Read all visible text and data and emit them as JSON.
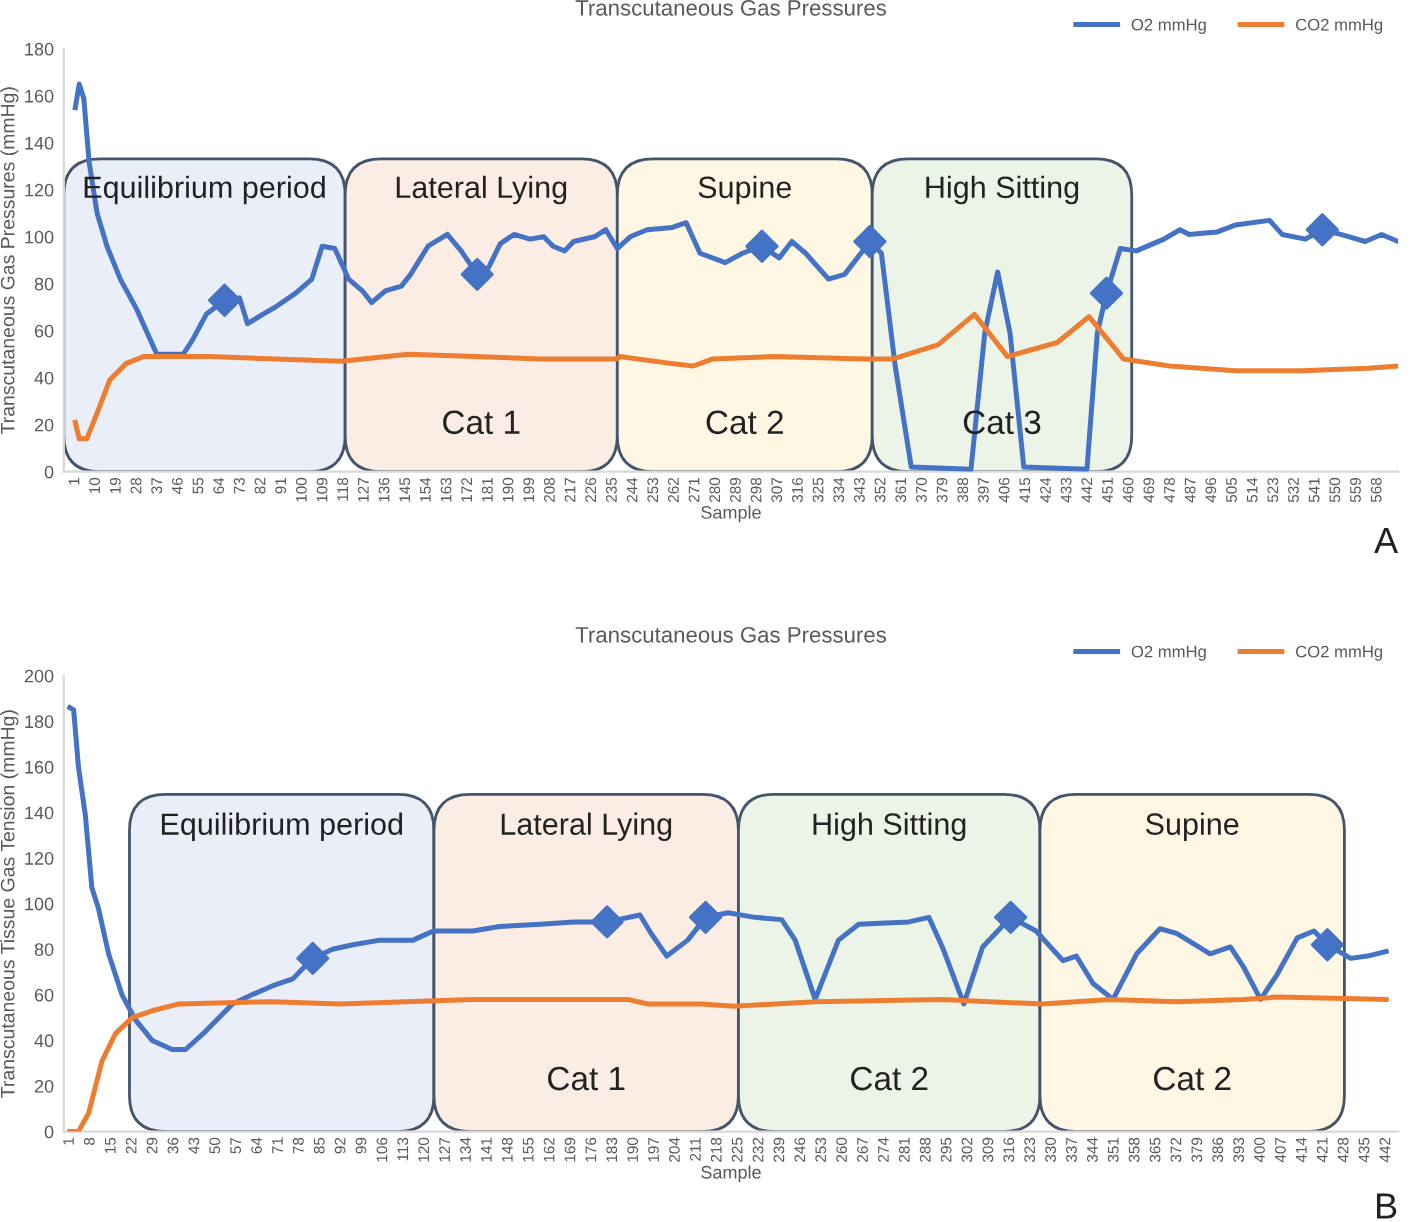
{
  "chart_data": [
    {
      "type": "line",
      "title": "Transcutaneous Gas Pressures",
      "xlabel": "Sample",
      "ylabel": "Transcutaneous Gas Pressures (mmHg)",
      "xlim": [
        -4,
        577
      ],
      "ylim": [
        0,
        180
      ],
      "yticks": [
        0,
        20,
        40,
        60,
        80,
        100,
        120,
        140,
        160,
        180
      ],
      "xticks": [
        1,
        10,
        19,
        28,
        37,
        46,
        55,
        64,
        73,
        82,
        91,
        100,
        109,
        118,
        127,
        136,
        145,
        154,
        163,
        172,
        181,
        190,
        199,
        208,
        217,
        226,
        235,
        244,
        253,
        262,
        271,
        280,
        289,
        298,
        307,
        316,
        325,
        334,
        343,
        352,
        361,
        370,
        379,
        388,
        397,
        406,
        415,
        424,
        433,
        442,
        451,
        460,
        469,
        478,
        487,
        496,
        505,
        514,
        523,
        532,
        541,
        550,
        559,
        568
      ],
      "grid": false,
      "legend": "top right",
      "series": [
        {
          "name": "O2 mmHg",
          "color": "#4472c4",
          "x": [
            1,
            2.7,
            4.7,
            7,
            10.5,
            14.8,
            20.6,
            27.8,
            36.5,
            48,
            52,
            58,
            66,
            72.5,
            76,
            82.6,
            88,
            97,
            104,
            108.5,
            114,
            120,
            126,
            130,
            136,
            143,
            147,
            154.6,
            163,
            169,
            176,
            181,
            186,
            192,
            199,
            205,
            209,
            214,
            218,
            227,
            232,
            237,
            242.6,
            250,
            261,
            267,
            273,
            284,
            291.5,
            300,
            307.5,
            313,
            319,
            329,
            336,
            347,
            352,
            358,
            365,
            391,
            397,
            402.6,
            408,
            414,
            441.5,
            446,
            450,
            456,
            463,
            475,
            482,
            486,
            498,
            506,
            521,
            526.5,
            536.6,
            543.8,
            552,
            562.6,
            569.8,
            577
          ],
          "values": [
            155,
            165,
            159,
            132,
            110,
            96,
            82,
            69,
            50,
            50,
            56,
            67,
            73,
            74,
            63,
            67,
            70,
            76,
            82,
            96,
            95,
            82,
            77,
            72,
            77,
            79,
            84,
            96,
            101,
            94,
            84,
            87,
            97,
            101,
            99,
            100,
            96,
            94,
            98,
            100,
            103,
            95,
            100,
            103,
            104,
            106,
            93,
            89,
            93,
            96,
            91,
            98,
            93,
            82,
            84,
            98,
            93,
            45,
            2,
            1,
            59,
            85,
            59,
            2,
            1,
            59,
            76,
            95,
            94,
            99,
            103,
            101,
            102,
            105,
            107,
            101,
            99,
            103,
            101,
            98,
            101,
            98
          ]
        },
        {
          "name": "CO2 mmHg",
          "color": "#ed7d31",
          "x": [
            1,
            2.7,
            6,
            10.5,
            16,
            23,
            30.7,
            59.5,
            88,
            117,
            146,
            175,
            203.7,
            237,
            238,
            261,
            270,
            278.6,
            305,
            345,
            357,
            376.6,
            392.5,
            406.9,
            428.6,
            442.4,
            457.4,
            477.5,
            506,
            535,
            564,
            577
          ],
          "values": [
            21,
            14,
            14,
            25,
            39,
            46,
            49,
            49,
            48,
            47,
            50,
            49,
            48,
            48,
            49,
            46,
            45,
            48,
            49,
            48,
            48,
            54,
            67,
            49,
            55,
            66,
            48,
            45,
            43,
            43,
            44,
            45
          ]
        },
        {
          "type": "scatter",
          "marker": "diamond",
          "color": "#4472c4",
          "x": [
            66,
            176,
            300,
            347,
            450,
            544
          ],
          "values": [
            73,
            84,
            96,
            98,
            76,
            103
          ]
        }
      ],
      "bands": [
        {
          "axis": "x",
          "from": -4,
          "to": 118.5,
          "label": "Equilibrium period",
          "color": "#e9eef8"
        },
        {
          "axis": "x",
          "from": 118.5,
          "to": 237,
          "label": "Lateral Lying",
          "color": "#fbede4"
        },
        {
          "axis": "x",
          "from": 237,
          "to": 348,
          "label": "Supine",
          "color": "#fff6e3"
        },
        {
          "axis": "x",
          "from": 348,
          "to": 461,
          "label": "High Sitting",
          "color": "#ecf4e8"
        }
      ],
      "annotations": [
        "Cat 1",
        "Cat 2",
        "Cat 3",
        "A"
      ]
    },
    {
      "type": "line",
      "title": "Transcutaneous Gas Pressures",
      "xlabel": "Sample",
      "ylabel": "Transcutaneous Tissue Gas Tension (mmHg)",
      "xlim": [
        -1,
        446
      ],
      "ylim": [
        0,
        200
      ],
      "yticks": [
        0,
        20,
        40,
        60,
        80,
        100,
        120,
        140,
        160,
        180,
        200
      ],
      "xticks": [
        1,
        8,
        15,
        22,
        29,
        36,
        43,
        50,
        57,
        64,
        71,
        78,
        85,
        92,
        99,
        106,
        113,
        120,
        127,
        134,
        141,
        148,
        155,
        162,
        169,
        176,
        183,
        190,
        197,
        204,
        211,
        218,
        225,
        232,
        239,
        246,
        253,
        260,
        267,
        274,
        281,
        288,
        295,
        302,
        309,
        316,
        323,
        330,
        337,
        344,
        351,
        358,
        365,
        372,
        379,
        386,
        393,
        400,
        407,
        414,
        421,
        428,
        435,
        442
      ],
      "grid": false,
      "legend": "top right",
      "series": [
        {
          "name": "O2 mmHg",
          "color": "#4472c4",
          "x": [
            1,
            2.3,
            3.9,
            6.2,
            8.4,
            10.6,
            14,
            18.5,
            23,
            28.6,
            35.3,
            39.8,
            46.5,
            55.5,
            62,
            69,
            75.7,
            82.4,
            89,
            95.9,
            104.9,
            116,
            122.8,
            136,
            145,
            158.7,
            169.9,
            181,
            192,
            195.7,
            201,
            208,
            214,
            221.5,
            230.5,
            239.5,
            244,
            250.7,
            258.5,
            265.3,
            282,
            288.8,
            293.3,
            300.5,
            306.8,
            316.2,
            324.7,
            333.7,
            338.2,
            343.8,
            350.5,
            358.4,
            366.2,
            371.8,
            383,
            389.8,
            394.3,
            399.9,
            405.5,
            412.2,
            417.8,
            422.3,
            430.1,
            435.7,
            442
          ],
          "values": [
            186,
            185,
            160,
            139,
            107,
            98,
            78,
            60,
            49,
            40,
            36,
            36,
            44,
            56,
            60,
            64,
            67,
            76,
            80,
            82,
            84,
            84,
            88,
            88,
            90,
            91,
            92,
            92,
            95,
            87,
            77,
            84,
            94,
            96,
            94,
            93,
            84,
            58,
            84,
            91,
            92,
            94,
            81,
            56,
            81,
            94,
            88,
            75,
            77,
            65,
            58,
            78,
            89,
            87,
            78,
            81,
            72,
            58,
            69,
            85,
            88,
            82,
            76,
            77,
            79
          ]
        },
        {
          "name": "CO2 mmHg",
          "color": "#ed7d31",
          "x": [
            1,
            3.9,
            7.3,
            11.8,
            16.3,
            21.9,
            28.6,
            37.6,
            69,
            91.4,
            113.8,
            136,
            158.7,
            187.9,
            194.6,
            212.5,
            223.7,
            250.7,
            293.3,
            309,
            326.9,
            349.4,
            371.8,
            394.3,
            405.5,
            442
          ],
          "values": [
            0,
            0,
            8,
            31,
            43,
            50,
            53,
            56,
            57,
            56,
            57,
            58,
            58,
            58,
            56,
            56,
            55,
            57,
            58,
            57,
            56,
            58,
            57,
            58,
            59,
            58
          ]
        },
        {
          "type": "scatter",
          "marker": "diamond",
          "color": "#4472c4",
          "x": [
            82.4,
            181,
            214,
            316.2,
            422.3
          ],
          "values": [
            76,
            92,
            94,
            94,
            82
          ]
        }
      ],
      "bands": [
        {
          "axis": "x",
          "from": 21,
          "to": 123,
          "label": "Equilibrium period",
          "color": "#e9eef8"
        },
        {
          "axis": "x",
          "from": 123,
          "to": 225,
          "label": "Lateral Lying",
          "color": "#fbede4"
        },
        {
          "axis": "x",
          "from": 225,
          "to": 326,
          "label": "High Sitting",
          "color": "#ecf4e8"
        },
        {
          "axis": "x",
          "from": 326,
          "to": 428,
          "label": "Supine",
          "color": "#fff6e3"
        }
      ],
      "annotations": [
        "Cat 1",
        "Cat 2",
        "Cat 2",
        "B"
      ]
    }
  ]
}
